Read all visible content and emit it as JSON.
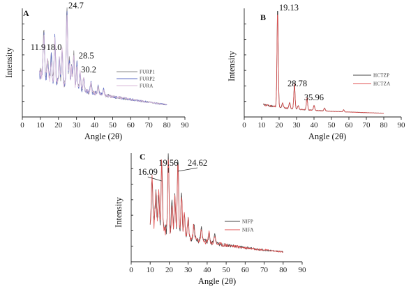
{
  "colors": {
    "panelA": [
      "#8a8a8a",
      "#5f6ec4",
      "#d8b8d8"
    ],
    "panelB": [
      "#444444",
      "#e05050"
    ],
    "panelC": [
      "#444444",
      "#e05050"
    ]
  },
  "chart_data": [
    {
      "type": "line",
      "panel": "A",
      "title": "",
      "xlabel": "Angle (2θ)",
      "ylabel": "Intensity",
      "xlim": [
        0,
        90
      ],
      "xticks": [
        0,
        10,
        20,
        30,
        40,
        50,
        60,
        70,
        80,
        90
      ],
      "legend_position": "right",
      "series": [
        {
          "name": "FURP1"
        },
        {
          "name": "FURP2"
        },
        {
          "name": "FURA"
        }
      ],
      "peaks": [
        {
          "x": 11.9,
          "label": "11.9",
          "height": 0.55
        },
        {
          "x": 18.0,
          "label": "18.0",
          "height": 0.55
        },
        {
          "x": 24.7,
          "label": "24.7",
          "height": 1.0
        },
        {
          "x": 28.5,
          "label": "28.5",
          "height": 0.44
        },
        {
          "x": 30.2,
          "label": "30.2",
          "height": 0.34
        }
      ]
    },
    {
      "type": "line",
      "panel": "B",
      "title": "",
      "xlabel": "Angle (2θ)",
      "ylabel": "Intensity",
      "xlim": [
        0,
        90
      ],
      "xticks": [
        0,
        10,
        20,
        30,
        40,
        50,
        60,
        70,
        80,
        90
      ],
      "legend_position": "right",
      "series": [
        {
          "name": "HCTZP"
        },
        {
          "name": "HCTZA"
        }
      ],
      "peaks": [
        {
          "x": 19.13,
          "label": "19.13",
          "height": 1.0
        },
        {
          "x": 28.78,
          "label": "28.78",
          "height": 0.25
        },
        {
          "x": 35.96,
          "label": "35.96",
          "height": 0.12
        }
      ]
    },
    {
      "type": "line",
      "panel": "C",
      "title": "",
      "xlabel": "Angle (2θ)",
      "ylabel": "Intensity",
      "xlim": [
        0,
        90
      ],
      "xticks": [
        0,
        10,
        20,
        30,
        40,
        50,
        60,
        70,
        80,
        90
      ],
      "legend_position": "right",
      "series": [
        {
          "name": "NIFP"
        },
        {
          "name": "NIFA"
        }
      ],
      "peaks": [
        {
          "x": 16.09,
          "label": "16.09",
          "height": 0.78
        },
        {
          "x": 19.56,
          "label": "19.56",
          "height": 0.86
        },
        {
          "x": 24.62,
          "label": "24.62",
          "height": 0.88
        }
      ]
    }
  ]
}
